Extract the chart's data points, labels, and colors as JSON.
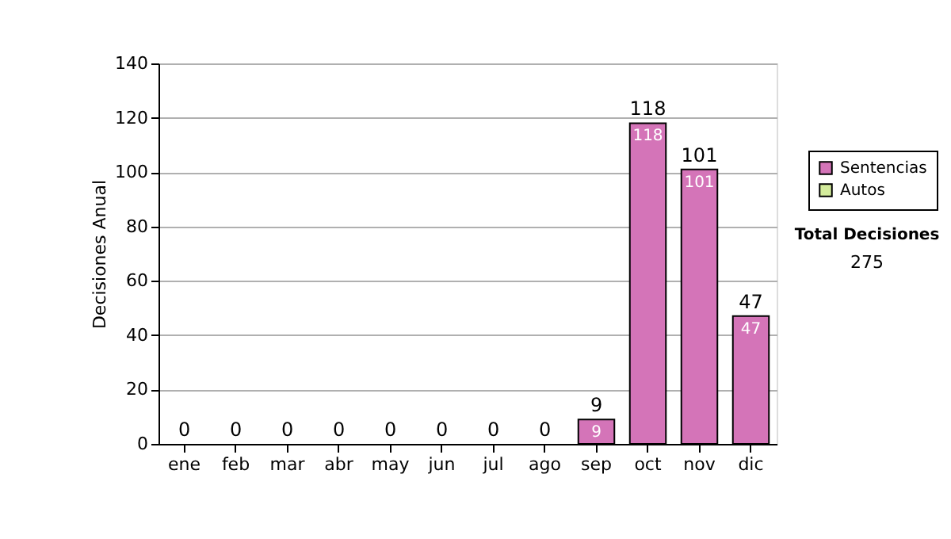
{
  "chart_data": {
    "type": "bar",
    "stacked": true,
    "ylabel": "Decisiones Anual",
    "categories": [
      "ene",
      "feb",
      "mar",
      "abr",
      "may",
      "jun",
      "jul",
      "ago",
      "sep",
      "oct",
      "nov",
      "dic"
    ],
    "series": [
      {
        "name": "Sentencias",
        "color": "#d474b8",
        "values": [
          0,
          0,
          0,
          0,
          0,
          0,
          0,
          0,
          9,
          118,
          101,
          47
        ],
        "value_labels": [
          null,
          null,
          null,
          null,
          null,
          null,
          null,
          null,
          "9",
          "118",
          "101",
          "47"
        ]
      },
      {
        "name": "Autos",
        "color": "#d4ec9c",
        "values": [
          0,
          0,
          0,
          0,
          0,
          0,
          0,
          0,
          0,
          0,
          0,
          0
        ]
      }
    ],
    "totals": [
      "0",
      "0",
      "0",
      "0",
      "0",
      "0",
      "0",
      "0",
      "9",
      "118",
      "101",
      "47"
    ],
    "ylim": [
      0,
      140
    ],
    "yticks": [
      0,
      20,
      40,
      60,
      80,
      100,
      120,
      140
    ],
    "grid": "y",
    "legend": "right",
    "annotations": [
      "Total Decisiones",
      "275"
    ]
  }
}
